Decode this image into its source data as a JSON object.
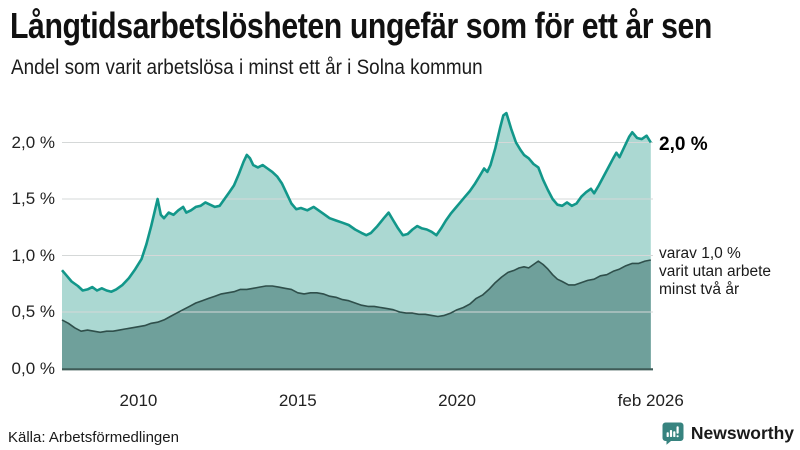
{
  "title": "Långtidsarbetslösheten ungefär som för ett år sen",
  "subtitle": "Andel som varit arbetslösa i minst ett år i Solna kommun",
  "source": "Källa: Arbetsförmedlingen",
  "brand": {
    "name": "Newsworthy",
    "color": "#37837f"
  },
  "labels": {
    "end_value": "2,0 %",
    "annotation_lines": [
      "varav 1,0 %",
      "varit utan arbete",
      "minst två år"
    ]
  },
  "colors": {
    "grid": "#d5d8d8",
    "axis_line": "#3f5b57",
    "text": "#1a1a1a",
    "brand": "#37837f"
  },
  "chart_data": {
    "type": "area",
    "title": "Långtidsarbetslösheten ungefär som för ett år sen",
    "subtitle": "Andel som varit arbetslösa i minst ett år i Solna kommun",
    "unit": "%",
    "x_axis": {
      "range": [
        2007.6,
        2026.15
      ],
      "ticks": [
        {
          "label": "2010",
          "year": 2010
        },
        {
          "label": "2015",
          "year": 2015
        },
        {
          "label": "2020",
          "year": 2020
        },
        {
          "label": "feb 2026",
          "year": 2026.08
        }
      ]
    },
    "y_axis": {
      "range": [
        0,
        2.4
      ],
      "ticks": [
        {
          "label": "0,0 %",
          "value": 0.0
        },
        {
          "label": "0,5 %",
          "value": 0.5
        },
        {
          "label": "1,0 %",
          "value": 1.0
        },
        {
          "label": "1,5 %",
          "value": 1.5
        },
        {
          "label": "2,0 %",
          "value": 2.0
        }
      ],
      "grid": true
    },
    "legend_position": "right-annotations",
    "series": [
      {
        "name": "Arbetslösa minst ett år",
        "line_color": "#12978a",
        "fill_color": "#abd8d2",
        "line_width": 2.6,
        "end_value": 2.0,
        "points": [
          [
            2007.6,
            0.87
          ],
          [
            2007.75,
            0.82
          ],
          [
            2007.9,
            0.77
          ],
          [
            2008.1,
            0.73
          ],
          [
            2008.25,
            0.69
          ],
          [
            2008.4,
            0.7
          ],
          [
            2008.55,
            0.72
          ],
          [
            2008.7,
            0.69
          ],
          [
            2008.85,
            0.71
          ],
          [
            2009.0,
            0.69
          ],
          [
            2009.15,
            0.68
          ],
          [
            2009.3,
            0.7
          ],
          [
            2009.5,
            0.74
          ],
          [
            2009.7,
            0.8
          ],
          [
            2009.9,
            0.88
          ],
          [
            2010.1,
            0.97
          ],
          [
            2010.25,
            1.1
          ],
          [
            2010.4,
            1.26
          ],
          [
            2010.5,
            1.38
          ],
          [
            2010.6,
            1.5
          ],
          [
            2010.7,
            1.36
          ],
          [
            2010.8,
            1.33
          ],
          [
            2010.95,
            1.38
          ],
          [
            2011.1,
            1.36
          ],
          [
            2011.25,
            1.4
          ],
          [
            2011.4,
            1.43
          ],
          [
            2011.5,
            1.38
          ],
          [
            2011.65,
            1.4
          ],
          [
            2011.8,
            1.43
          ],
          [
            2011.95,
            1.44
          ],
          [
            2012.1,
            1.47
          ],
          [
            2012.25,
            1.45
          ],
          [
            2012.4,
            1.43
          ],
          [
            2012.55,
            1.44
          ],
          [
            2012.7,
            1.5
          ],
          [
            2012.85,
            1.56
          ],
          [
            2013.0,
            1.62
          ],
          [
            2013.15,
            1.72
          ],
          [
            2013.3,
            1.83
          ],
          [
            2013.4,
            1.89
          ],
          [
            2013.5,
            1.86
          ],
          [
            2013.6,
            1.8
          ],
          [
            2013.75,
            1.78
          ],
          [
            2013.9,
            1.8
          ],
          [
            2014.05,
            1.77
          ],
          [
            2014.2,
            1.74
          ],
          [
            2014.35,
            1.7
          ],
          [
            2014.5,
            1.64
          ],
          [
            2014.65,
            1.55
          ],
          [
            2014.8,
            1.46
          ],
          [
            2014.95,
            1.41
          ],
          [
            2015.1,
            1.42
          ],
          [
            2015.3,
            1.4
          ],
          [
            2015.5,
            1.43
          ],
          [
            2015.65,
            1.4
          ],
          [
            2015.8,
            1.37
          ],
          [
            2016.0,
            1.33
          ],
          [
            2016.2,
            1.31
          ],
          [
            2016.4,
            1.29
          ],
          [
            2016.6,
            1.27
          ],
          [
            2016.8,
            1.23
          ],
          [
            2017.0,
            1.2
          ],
          [
            2017.15,
            1.18
          ],
          [
            2017.3,
            1.2
          ],
          [
            2017.5,
            1.26
          ],
          [
            2017.7,
            1.33
          ],
          [
            2017.85,
            1.38
          ],
          [
            2018.0,
            1.31
          ],
          [
            2018.15,
            1.24
          ],
          [
            2018.3,
            1.18
          ],
          [
            2018.45,
            1.19
          ],
          [
            2018.6,
            1.23
          ],
          [
            2018.75,
            1.26
          ],
          [
            2018.9,
            1.24
          ],
          [
            2019.05,
            1.23
          ],
          [
            2019.2,
            1.21
          ],
          [
            2019.35,
            1.18
          ],
          [
            2019.5,
            1.24
          ],
          [
            2019.65,
            1.31
          ],
          [
            2019.8,
            1.37
          ],
          [
            2019.95,
            1.42
          ],
          [
            2020.1,
            1.47
          ],
          [
            2020.25,
            1.52
          ],
          [
            2020.4,
            1.57
          ],
          [
            2020.55,
            1.63
          ],
          [
            2020.7,
            1.7
          ],
          [
            2020.85,
            1.77
          ],
          [
            2020.95,
            1.74
          ],
          [
            2021.05,
            1.8
          ],
          [
            2021.2,
            1.95
          ],
          [
            2021.35,
            2.13
          ],
          [
            2021.45,
            2.24
          ],
          [
            2021.55,
            2.26
          ],
          [
            2021.7,
            2.12
          ],
          [
            2021.85,
            2.0
          ],
          [
            2022.0,
            1.93
          ],
          [
            2022.1,
            1.89
          ],
          [
            2022.25,
            1.86
          ],
          [
            2022.4,
            1.81
          ],
          [
            2022.55,
            1.78
          ],
          [
            2022.7,
            1.67
          ],
          [
            2022.85,
            1.58
          ],
          [
            2023.0,
            1.5
          ],
          [
            2023.15,
            1.45
          ],
          [
            2023.3,
            1.44
          ],
          [
            2023.45,
            1.47
          ],
          [
            2023.6,
            1.44
          ],
          [
            2023.75,
            1.46
          ],
          [
            2023.9,
            1.52
          ],
          [
            2024.05,
            1.56
          ],
          [
            2024.2,
            1.59
          ],
          [
            2024.3,
            1.55
          ],
          [
            2024.45,
            1.62
          ],
          [
            2024.6,
            1.7
          ],
          [
            2024.75,
            1.78
          ],
          [
            2024.9,
            1.86
          ],
          [
            2025.0,
            1.91
          ],
          [
            2025.1,
            1.87
          ],
          [
            2025.25,
            1.96
          ],
          [
            2025.4,
            2.05
          ],
          [
            2025.5,
            2.09
          ],
          [
            2025.65,
            2.04
          ],
          [
            2025.8,
            2.03
          ],
          [
            2025.95,
            2.06
          ],
          [
            2026.08,
            2.0
          ]
        ]
      },
      {
        "name": "Varav utan arbete minst två år",
        "line_color": "#2f4f4b",
        "fill_color": "#6fa09b",
        "line_width": 1.6,
        "end_value": 1.0,
        "points": [
          [
            2007.6,
            0.43
          ],
          [
            2007.8,
            0.4
          ],
          [
            2008.0,
            0.36
          ],
          [
            2008.2,
            0.33
          ],
          [
            2008.4,
            0.34
          ],
          [
            2008.6,
            0.33
          ],
          [
            2008.8,
            0.32
          ],
          [
            2009.0,
            0.33
          ],
          [
            2009.2,
            0.33
          ],
          [
            2009.4,
            0.34
          ],
          [
            2009.6,
            0.35
          ],
          [
            2009.8,
            0.36
          ],
          [
            2010.0,
            0.37
          ],
          [
            2010.2,
            0.38
          ],
          [
            2010.4,
            0.4
          ],
          [
            2010.6,
            0.41
          ],
          [
            2010.8,
            0.43
          ],
          [
            2011.0,
            0.46
          ],
          [
            2011.2,
            0.49
          ],
          [
            2011.4,
            0.52
          ],
          [
            2011.6,
            0.55
          ],
          [
            2011.8,
            0.58
          ],
          [
            2012.0,
            0.6
          ],
          [
            2012.2,
            0.62
          ],
          [
            2012.4,
            0.64
          ],
          [
            2012.6,
            0.66
          ],
          [
            2012.8,
            0.67
          ],
          [
            2013.0,
            0.68
          ],
          [
            2013.2,
            0.7
          ],
          [
            2013.4,
            0.7
          ],
          [
            2013.6,
            0.71
          ],
          [
            2013.8,
            0.72
          ],
          [
            2014.0,
            0.73
          ],
          [
            2014.2,
            0.73
          ],
          [
            2014.4,
            0.72
          ],
          [
            2014.6,
            0.71
          ],
          [
            2014.8,
            0.7
          ],
          [
            2015.0,
            0.67
          ],
          [
            2015.2,
            0.66
          ],
          [
            2015.4,
            0.67
          ],
          [
            2015.6,
            0.67
          ],
          [
            2015.8,
            0.66
          ],
          [
            2016.0,
            0.64
          ],
          [
            2016.2,
            0.63
          ],
          [
            2016.4,
            0.61
          ],
          [
            2016.6,
            0.6
          ],
          [
            2016.8,
            0.58
          ],
          [
            2017.0,
            0.56
          ],
          [
            2017.2,
            0.55
          ],
          [
            2017.4,
            0.55
          ],
          [
            2017.6,
            0.54
          ],
          [
            2017.8,
            0.53
          ],
          [
            2018.0,
            0.52
          ],
          [
            2018.2,
            0.5
          ],
          [
            2018.4,
            0.49
          ],
          [
            2018.6,
            0.49
          ],
          [
            2018.8,
            0.48
          ],
          [
            2019.0,
            0.48
          ],
          [
            2019.2,
            0.47
          ],
          [
            2019.4,
            0.46
          ],
          [
            2019.6,
            0.47
          ],
          [
            2019.8,
            0.49
          ],
          [
            2020.0,
            0.52
          ],
          [
            2020.2,
            0.54
          ],
          [
            2020.4,
            0.57
          ],
          [
            2020.6,
            0.62
          ],
          [
            2020.8,
            0.65
          ],
          [
            2021.0,
            0.7
          ],
          [
            2021.2,
            0.76
          ],
          [
            2021.4,
            0.81
          ],
          [
            2021.6,
            0.85
          ],
          [
            2021.8,
            0.87
          ],
          [
            2021.95,
            0.89
          ],
          [
            2022.1,
            0.9
          ],
          [
            2022.25,
            0.89
          ],
          [
            2022.4,
            0.92
          ],
          [
            2022.55,
            0.95
          ],
          [
            2022.7,
            0.92
          ],
          [
            2022.85,
            0.88
          ],
          [
            2023.0,
            0.83
          ],
          [
            2023.15,
            0.79
          ],
          [
            2023.3,
            0.77
          ],
          [
            2023.5,
            0.74
          ],
          [
            2023.7,
            0.74
          ],
          [
            2023.9,
            0.76
          ],
          [
            2024.1,
            0.78
          ],
          [
            2024.3,
            0.79
          ],
          [
            2024.5,
            0.82
          ],
          [
            2024.7,
            0.83
          ],
          [
            2024.9,
            0.86
          ],
          [
            2025.1,
            0.88
          ],
          [
            2025.3,
            0.91
          ],
          [
            2025.5,
            0.93
          ],
          [
            2025.7,
            0.93
          ],
          [
            2025.9,
            0.95
          ],
          [
            2026.08,
            0.96
          ]
        ]
      }
    ]
  }
}
